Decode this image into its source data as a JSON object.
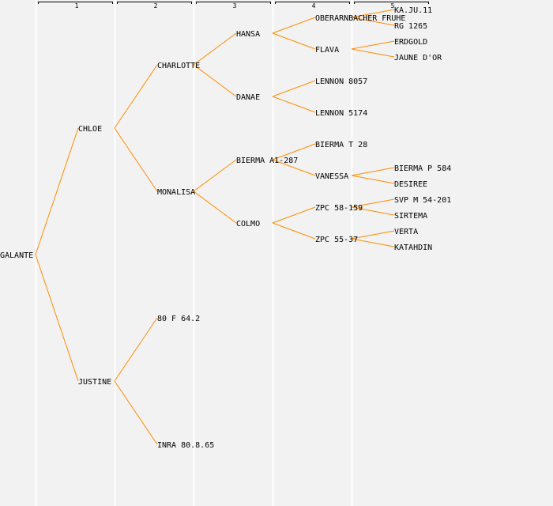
{
  "generation_labels": [
    "1",
    "2",
    "3",
    "4",
    "5"
  ],
  "colors": {
    "link": "#ff8c00",
    "background": "#f2f2f2",
    "divider": "#ffffff"
  },
  "pedigree": {
    "name": "GALANTE",
    "parents": [
      {
        "name": "CHLOE",
        "parents": [
          {
            "name": "CHARLOTTE",
            "parents": [
              {
                "name": "HANSA",
                "parents": [
                  {
                    "name": "OBERARNBACHER FRUHE",
                    "parents": [
                      {
                        "name": "KA.JU.11"
                      },
                      {
                        "name": "RG 1265"
                      }
                    ]
                  },
                  {
                    "name": "FLAVA",
                    "parents": [
                      {
                        "name": "ERDGOLD"
                      },
                      {
                        "name": "JAUNE D'OR"
                      }
                    ]
                  }
                ]
              },
              {
                "name": "DANAE",
                "parents": [
                  {
                    "name": "LENNON 8057"
                  },
                  {
                    "name": "LENNON 5174"
                  }
                ]
              }
            ]
          },
          {
            "name": "MONALISA",
            "parents": [
              {
                "name": "BIERMA A1-287",
                "parents": [
                  {
                    "name": "BIERMA T 28"
                  },
                  {
                    "name": "VANESSA",
                    "parents": [
                      {
                        "name": "BIERMA P 584"
                      },
                      {
                        "name": "DESIREE"
                      }
                    ]
                  }
                ]
              },
              {
                "name": "COLMO",
                "parents": [
                  {
                    "name": "ZPC 58-159",
                    "parents": [
                      {
                        "name": "SVP M 54-201"
                      },
                      {
                        "name": "SIRTEMA"
                      }
                    ]
                  },
                  {
                    "name": "ZPC 55-37",
                    "parents": [
                      {
                        "name": "VERTA"
                      },
                      {
                        "name": "KATAHDIN"
                      }
                    ]
                  }
                ]
              }
            ]
          }
        ]
      },
      {
        "name": "JUSTINE",
        "parents": [
          {
            "name": "80 F 64.2"
          },
          {
            "name": "INRA 80.8.65"
          }
        ]
      }
    ]
  }
}
